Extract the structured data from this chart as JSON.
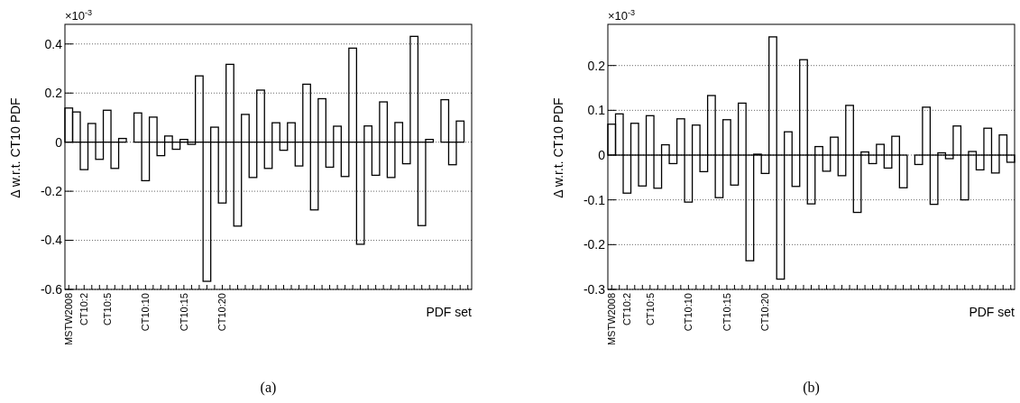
{
  "chart_data": [
    {
      "type": "bar",
      "title": "(a)",
      "xlabel": "PDF set",
      "ylabel": "Δ w.r.t. CT10 PDF",
      "annotations": [
        "×10$^{-3}$"
      ],
      "categories": [
        "MSTW2008",
        null,
        "CT10:2",
        null,
        null,
        "CT10:5",
        null,
        null,
        null,
        null,
        "CT10:10",
        null,
        null,
        null,
        null,
        "CT10:15",
        null,
        null,
        null,
        null,
        "CT10:20",
        null,
        null,
        null,
        null,
        null,
        null,
        null,
        null,
        null,
        null,
        null,
        null,
        null,
        null,
        null,
        null,
        null,
        null,
        null,
        null,
        null,
        null,
        null,
        null,
        null,
        null,
        null,
        null,
        null,
        null,
        null,
        null
      ],
      "series": [
        {
          "color": "#000000",
          "values": [
            0.139,
            0.123,
            -0.112,
            0.076,
            -0.07,
            0.13,
            -0.107,
            0.015,
            0,
            0.119,
            -0.157,
            0.102,
            -0.055,
            0.025,
            -0.029,
            0.011,
            -0.009,
            0.27,
            -0.567,
            0.061,
            -0.248,
            0.317,
            -0.342,
            0.113,
            -0.144,
            0.212,
            -0.107,
            0.079,
            -0.033,
            0.079,
            -0.097,
            0.236,
            -0.276,
            0.177,
            -0.102,
            0.065,
            -0.14,
            0.383,
            -0.416,
            0.066,
            -0.135,
            0.164,
            -0.144,
            0.08,
            -0.088,
            0.431,
            -0.34,
            0.011,
            0,
            0.173,
            -0.092,
            0.086,
            0
          ]
        }
      ],
      "ylim": [
        -0.6,
        0.48
      ],
      "yticks": [
        -0.6,
        -0.4,
        -0.2,
        0,
        0.2,
        0.4
      ],
      "grid": "y"
    },
    {
      "type": "bar",
      "title": "(b)",
      "xlabel": "PDF set",
      "ylabel": "Δ w.r.t. CT10 PDF",
      "annotations": [
        "×10$^{-3}$"
      ],
      "categories": [
        "MSTW2008",
        null,
        "CT10:2",
        null,
        null,
        "CT10:5",
        null,
        null,
        null,
        null,
        "CT10:10",
        null,
        null,
        null,
        null,
        "CT10:15",
        null,
        null,
        null,
        null,
        "CT10:20",
        null,
        null,
        null,
        null,
        null,
        null,
        null,
        null,
        null,
        null,
        null,
        null,
        null,
        null,
        null,
        null,
        null,
        null,
        null,
        null,
        null,
        null,
        null,
        null,
        null,
        null,
        null,
        null,
        null,
        null,
        null,
        null
      ],
      "series": [
        {
          "color": "#000000",
          "values": [
            0.069,
            0.092,
            -0.085,
            0.071,
            -0.069,
            0.088,
            -0.074,
            0.023,
            -0.019,
            0.081,
            -0.105,
            0.067,
            -0.037,
            0.133,
            -0.095,
            0.079,
            -0.067,
            0.116,
            -0.236,
            0.002,
            -0.041,
            0.264,
            -0.277,
            0.052,
            -0.07,
            0.213,
            -0.109,
            0.019,
            -0.036,
            0.04,
            -0.046,
            0.111,
            -0.128,
            0.007,
            -0.019,
            0.024,
            -0.029,
            0.042,
            -0.073,
            0,
            -0.021,
            0.107,
            -0.11,
            0.005,
            -0.008,
            0.065,
            -0.1,
            0.008,
            -0.033,
            0.06,
            -0.04,
            0.045,
            -0.016
          ]
        }
      ],
      "ylim": [
        -0.3,
        0.292
      ],
      "yticks": [
        -0.3,
        -0.2,
        -0.1,
        0,
        0.1,
        0.2
      ],
      "grid": "y"
    }
  ]
}
